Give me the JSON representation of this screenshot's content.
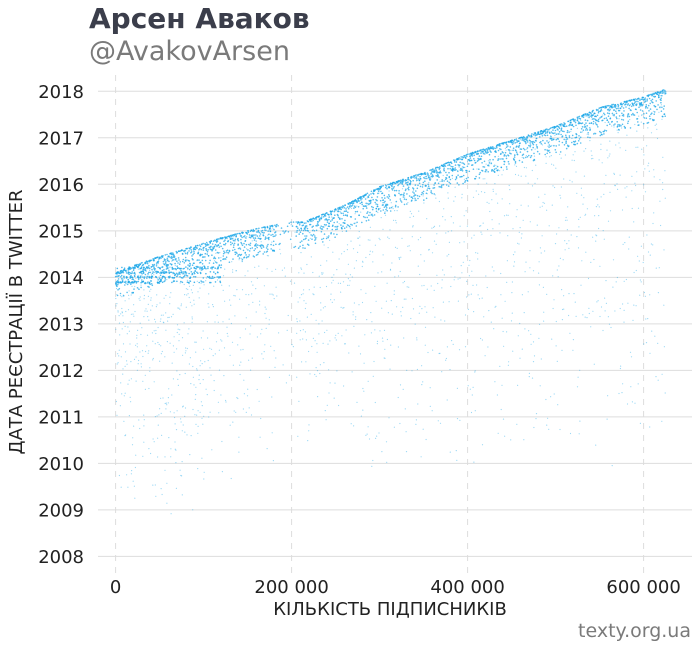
{
  "header": {
    "title": "Арсен Аваков",
    "subtitle": "@AvakovArsen"
  },
  "footer": {
    "credit": "texty.org.ua"
  },
  "colors": {
    "points": "#1fa8e8",
    "grid": "#dddddd",
    "text": "#222222",
    "title": "#3b3e4b",
    "muted": "#7a7a7a"
  },
  "chart_data": {
    "type": "scatter",
    "xlabel": "КІЛЬКІСТЬ ПІДПИСНИКІВ",
    "ylabel": "ДАТА РЕЄСТРАЦІЇ В TWITTER",
    "xlim": [
      -20000,
      655000
    ],
    "ylim": [
      2007.6,
      2018.35
    ],
    "x_ticks": [
      {
        "value": 0,
        "label": "0"
      },
      {
        "value": 200000,
        "label": "200 000"
      },
      {
        "value": 400000,
        "label": "400 000"
      },
      {
        "value": 600000,
        "label": "600 000"
      }
    ],
    "y_ticks": [
      {
        "value": 2008,
        "label": "2008"
      },
      {
        "value": 2009,
        "label": "2009"
      },
      {
        "value": 2010,
        "label": "2010"
      },
      {
        "value": 2011,
        "label": "2011"
      },
      {
        "value": 2012,
        "label": "2012"
      },
      {
        "value": 2013,
        "label": "2013"
      },
      {
        "value": 2014,
        "label": "2014"
      },
      {
        "value": 2015,
        "label": "2015"
      },
      {
        "value": 2016,
        "label": "2016"
      },
      {
        "value": 2017,
        "label": "2017"
      },
      {
        "value": 2018,
        "label": "2018"
      }
    ],
    "grid": true,
    "series": [
      {
        "description_points": "upper envelope of follower order vs registration date",
        "upper_envelope": [
          {
            "x": 0,
            "y": 2014.1
          },
          {
            "x": 20000,
            "y": 2014.25
          },
          {
            "x": 50000,
            "y": 2014.45
          },
          {
            "x": 80000,
            "y": 2014.62
          },
          {
            "x": 120000,
            "y": 2014.85
          },
          {
            "x": 160000,
            "y": 2015.05
          },
          {
            "x": 195000,
            "y": 2015.18
          },
          {
            "x": 215000,
            "y": 2015.2
          },
          {
            "x": 260000,
            "y": 2015.55
          },
          {
            "x": 300000,
            "y": 2015.95
          },
          {
            "x": 350000,
            "y": 2016.25
          },
          {
            "x": 400000,
            "y": 2016.65
          },
          {
            "x": 450000,
            "y": 2016.95
          },
          {
            "x": 500000,
            "y": 2017.25
          },
          {
            "x": 550000,
            "y": 2017.65
          },
          {
            "x": 600000,
            "y": 2017.88
          },
          {
            "x": 625000,
            "y": 2018.05
          }
        ],
        "x_range": [
          0,
          625000
        ],
        "min_y": 2008.0
      }
    ]
  }
}
